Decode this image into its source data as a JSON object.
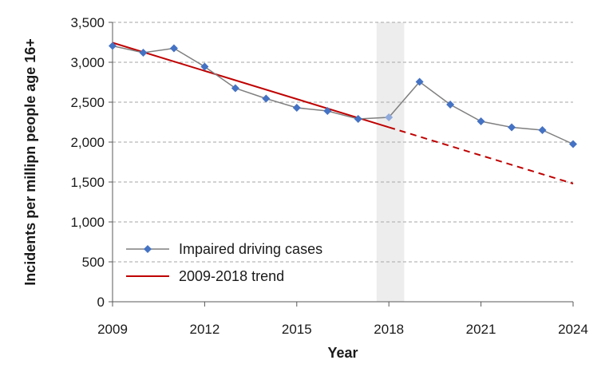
{
  "chart_data": {
    "type": "line",
    "xlabel": "Year",
    "ylabel": "Incidents per millipn people age 16+",
    "xlim": [
      2009,
      2024
    ],
    "ylim": [
      0,
      3500
    ],
    "x_ticks": [
      2009,
      2012,
      2015,
      2018,
      2021,
      2024
    ],
    "y_ticks": [
      0,
      500,
      1000,
      1500,
      2000,
      2500,
      3000,
      3500
    ],
    "y_tick_labels": [
      "0",
      "500",
      "1,000",
      "1,500",
      "2,000",
      "2,500",
      "3,000",
      "3,500"
    ],
    "grid": "horizontal dashed",
    "legend_position": "bottom-left",
    "shaded_band": {
      "x_from": 2017.6,
      "x_to": 2018.5,
      "color": "#ededed"
    },
    "series": [
      {
        "name": "Impaired driving cases",
        "color": "#7f7f7f",
        "marker_color": "#4472c4",
        "marker": "diamond",
        "x": [
          2009,
          2010,
          2011,
          2012,
          2013,
          2014,
          2015,
          2016,
          2017,
          2018,
          2019,
          2020,
          2021,
          2022,
          2023,
          2024
        ],
        "values": [
          3205,
          3120,
          3175,
          2945,
          2675,
          2545,
          2430,
          2390,
          2290,
          2310,
          2755,
          2470,
          2260,
          2185,
          2150,
          1975
        ],
        "highlight_point": {
          "x": 2018,
          "marker_color": "#8faadc"
        }
      },
      {
        "name": "2009-2018 trend",
        "color": "#c00000",
        "x": [
          2009,
          2024
        ],
        "values": [
          3245,
          1480
        ],
        "solid_until": 2018,
        "dashed_after": 2018
      }
    ]
  },
  "colors": {
    "grid": "#a6a6a6",
    "axis": "#595959",
    "trend": "#c00000",
    "series_line": "#7f7f7f",
    "marker": "#4472c4",
    "highlight_marker": "#8faadc"
  }
}
